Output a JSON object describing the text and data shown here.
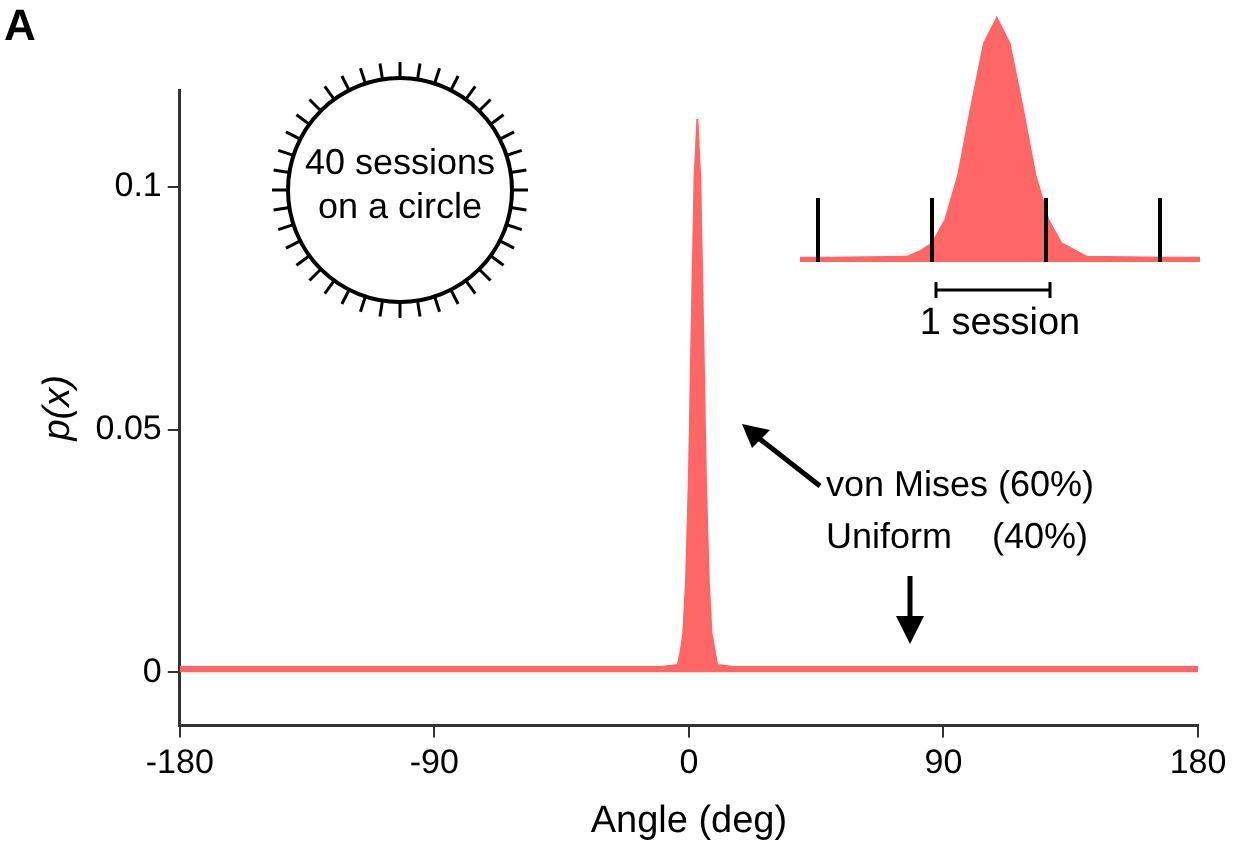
{
  "chart_data": [
    {
      "type": "area",
      "xlabel": "Angle (deg)",
      "ylabel": "p(x)",
      "x": [
        -180,
        -10,
        -4,
        -3,
        -2,
        -1,
        0,
        1,
        2,
        3,
        4,
        5,
        6,
        7,
        8,
        10,
        16,
        180
      ],
      "values": [
        0.0011,
        0.0011,
        0.0015,
        0.004,
        0.008,
        0.019,
        0.04,
        0.072,
        0.102,
        0.114,
        0.102,
        0.072,
        0.04,
        0.019,
        0.008,
        0.0015,
        0.0011,
        0.0011
      ],
      "color": "#ff6666",
      "xlim": [
        -180,
        180
      ],
      "xticks": [
        -180,
        -90,
        0,
        90,
        180
      ],
      "ylim": [
        -0.011,
        0.12
      ],
      "yticks": [
        0,
        0.05,
        0.1
      ],
      "annotations": [
        "A",
        "40 sessions on a circle",
        "von Mises (60%)",
        "Uniform    (40%)",
        "1 session"
      ]
    }
  ]
}
